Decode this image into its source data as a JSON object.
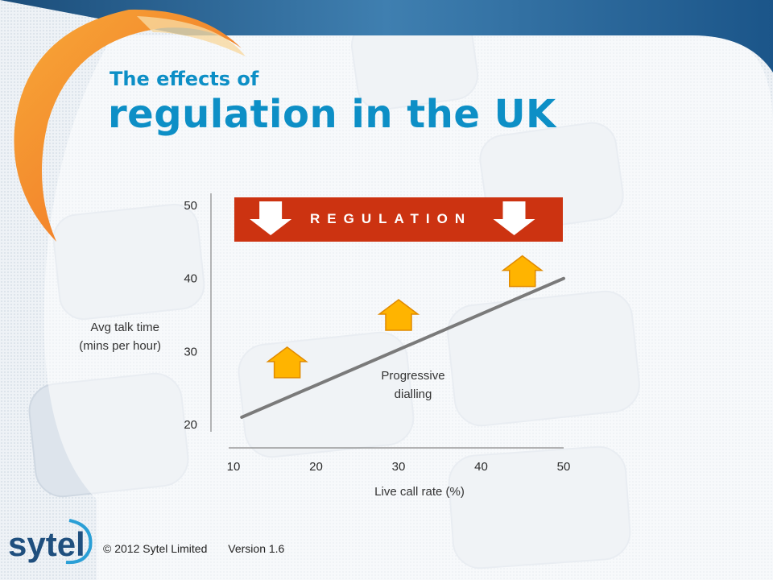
{
  "title": {
    "line1": "The effects of",
    "line2": "regulation in the UK"
  },
  "colors": {
    "title": "#0d8fc6",
    "top_bar": "#2f6fa1",
    "banner": "#cc3311",
    "arrow_up": "#ffb400",
    "trend_line": "#7a7a7a"
  },
  "chart_data": {
    "type": "line",
    "ylabel": [
      "Avg talk time",
      "(mins per hour)"
    ],
    "xlabel": "Live call rate (%)",
    "y_ticks": [
      "20",
      "30",
      "40",
      "50"
    ],
    "x_ticks": [
      "10",
      "20",
      "30",
      "40",
      "50"
    ],
    "ylim": [
      20,
      50
    ],
    "xlim": [
      10,
      50
    ],
    "series": [
      {
        "x": [
          11,
          50
        ],
        "y": [
          21,
          40
        ]
      }
    ],
    "banner": "REGULATION",
    "annotation": [
      "Progressive",
      "dialling"
    ],
    "up_arrows": [
      {
        "x": 16.5,
        "y": 28.5
      },
      {
        "x": 30,
        "y": 35
      },
      {
        "x": 45,
        "y": 41
      }
    ],
    "down_arrows": [
      {
        "x": 14.5
      },
      {
        "x": 44
      }
    ],
    "grid": false
  },
  "footer": {
    "copyright": "© 2012 Sytel Limited",
    "version": "Version 1.6"
  },
  "logo": {
    "text": "sytel",
    "icon": "sytel-swoosh-logo"
  }
}
